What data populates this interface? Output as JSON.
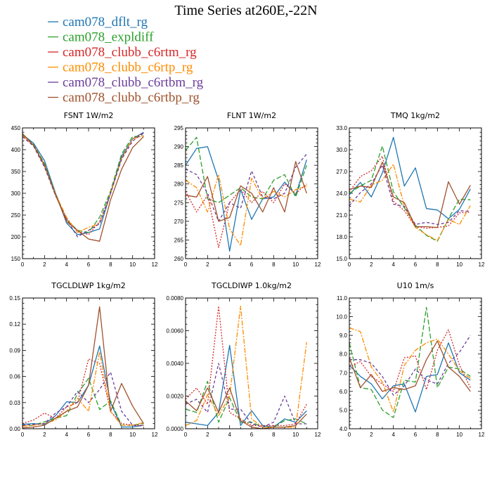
{
  "figure": {
    "title": "Time Series at260E,-22N"
  },
  "colors": {
    "cam078_dflt_rg": "#1f77b4",
    "cam078_expldiff": "#2ca02c",
    "cam078_clubb_c6rtm_rg": "#d62728",
    "cam078_clubb_c6rtp_rg": "#ff8c00",
    "cam078_clubb_c6rtbm_rg": "#6a3d9a",
    "cam078_clubb_c6rtbp_rg": "#a0522d"
  },
  "legend": [
    {
      "label": "cam078_dflt_rg",
      "color": "#1f77b4",
      "dash": "solid"
    },
    {
      "label": "cam078_expldiff",
      "color": "#2ca02c",
      "dash": "longdash"
    },
    {
      "label": "cam078_clubb_c6rtm_rg",
      "color": "#d62728",
      "dash": "dot"
    },
    {
      "label": "cam078_clubb_c6rtp_rg",
      "color": "#ff8c00",
      "dash": "dashdot"
    },
    {
      "label": "cam078_clubb_c6rtbm_rg",
      "color": "#6a3d9a",
      "dash": "dash"
    },
    {
      "label": "cam078_clubb_c6rtbp_rg",
      "color": "#a0522d",
      "dash": "solid"
    }
  ],
  "chart_data": [
    {
      "type": "line",
      "title": "FSNT   1W/m2",
      "xlim": [
        0,
        12
      ],
      "xticks": [
        "0",
        "2",
        "4",
        "6",
        "8",
        "10",
        "12"
      ],
      "ylim": [
        150,
        450
      ],
      "yticks": [
        "150",
        "200",
        "250",
        "300",
        "350",
        "400",
        "450"
      ],
      "x": [
        0,
        1,
        2,
        3,
        4,
        5,
        6,
        7,
        8,
        9,
        10,
        11
      ],
      "series": [
        {
          "name": "cam078_dflt_rg",
          "values": [
            435,
            415,
            375,
            300,
            232,
            205,
            210,
            218,
            300,
            385,
            425,
            440
          ]
        },
        {
          "name": "cam078_expldiff",
          "values": [
            435,
            412,
            368,
            300,
            240,
            215,
            210,
            245,
            305,
            390,
            430,
            432
          ]
        },
        {
          "name": "cam078_clubb_c6rtm_rg",
          "values": [
            432,
            410,
            365,
            295,
            240,
            213,
            205,
            235,
            300,
            380,
            425,
            438
          ]
        },
        {
          "name": "cam078_clubb_c6rtp_rg",
          "values": [
            432,
            410,
            362,
            298,
            245,
            210,
            222,
            230,
            300,
            380,
            425,
            432
          ]
        },
        {
          "name": "cam078_clubb_c6rtbm_rg",
          "values": [
            430,
            408,
            360,
            295,
            240,
            200,
            215,
            230,
            300,
            378,
            420,
            438
          ]
        },
        {
          "name": "cam078_clubb_c6rtbp_rg",
          "values": [
            437,
            410,
            365,
            297,
            235,
            215,
            195,
            190,
            285,
            355,
            405,
            430
          ]
        }
      ]
    },
    {
      "type": "line",
      "title": "FLNT   1W/m2",
      "xlim": [
        0,
        12
      ],
      "xticks": [
        "0",
        "2",
        "4",
        "6",
        "8",
        "10",
        "12"
      ],
      "ylim": [
        260,
        295
      ],
      "yticks": [
        "260",
        "265",
        "270",
        "275",
        "280",
        "285",
        "290",
        "295"
      ],
      "x": [
        0,
        1,
        2,
        3,
        4,
        5,
        6,
        7,
        8,
        9,
        10,
        11
      ],
      "series": [
        {
          "name": "cam078_dflt_rg",
          "values": [
            285,
            289.5,
            290,
            281,
            262,
            278.5,
            270.5,
            276,
            276.5,
            280.5,
            277,
            286.5
          ]
        },
        {
          "name": "cam078_expldiff",
          "values": [
            289,
            292.5,
            276,
            275,
            277,
            279,
            276.5,
            276,
            281,
            282.5,
            276.5,
            285
          ]
        },
        {
          "name": "cam078_clubb_c6rtm_rg",
          "values": [
            278,
            272.5,
            277,
            263,
            275,
            278.5,
            275,
            278,
            275,
            280,
            277.5,
            280
          ]
        },
        {
          "name": "cam078_clubb_c6rtp_rg",
          "values": [
            281,
            279,
            272.5,
            282.5,
            268,
            263.5,
            281.5,
            276,
            278,
            276.5,
            278.5,
            279.5
          ]
        },
        {
          "name": "cam078_clubb_c6rtbm_rg",
          "values": [
            284,
            282.5,
            277.5,
            270,
            275,
            273.5,
            283.5,
            276.5,
            276,
            277.5,
            284.5,
            288
          ]
        },
        {
          "name": "cam078_clubb_c6rtbp_rg",
          "values": [
            277,
            276.5,
            282,
            270,
            271,
            279.5,
            277.5,
            272.5,
            279,
            272.5,
            286,
            277.5
          ]
        }
      ]
    },
    {
      "type": "line",
      "title": "TMQ   1kg/m2",
      "xlim": [
        0,
        12
      ],
      "xticks": [
        "0",
        "2",
        "4",
        "6",
        "8",
        "10",
        "12"
      ],
      "ylim": [
        15,
        33
      ],
      "yticks": [
        "15.0",
        "18.0",
        "21.0",
        "24.0",
        "27.0",
        "30.0",
        "33.0"
      ],
      "x": [
        0,
        1,
        2,
        3,
        4,
        5,
        6,
        7,
        8,
        9,
        10,
        11
      ],
      "series": [
        {
          "name": "cam078_dflt_rg",
          "values": [
            23.8,
            25.5,
            23.5,
            26.8,
            31.7,
            25.0,
            27.5,
            21.9,
            21.7,
            20.5,
            21.8,
            24.6
          ]
        },
        {
          "name": "cam078_expldiff",
          "values": [
            24.0,
            25.0,
            25.8,
            30.5,
            24.2,
            22.0,
            19.6,
            18.2,
            17.4,
            20.5,
            23.2,
            23.1
          ]
        },
        {
          "name": "cam078_clubb_c6rtm_rg",
          "values": [
            24.2,
            26.3,
            27.1,
            29.1,
            22.9,
            21.6,
            19.4,
            19.2,
            19.3,
            19.5,
            21.3,
            21.4
          ]
        },
        {
          "name": "cam078_clubb_c6rtp_rg",
          "values": [
            23.2,
            22.8,
            25.1,
            25.8,
            28.0,
            22.2,
            19.3,
            18.3,
            17.5,
            20.4,
            19.7,
            22.3
          ]
        },
        {
          "name": "cam078_clubb_c6rtbm_rg",
          "values": [
            22.3,
            24.1,
            25.3,
            27.9,
            22.5,
            22.2,
            19.7,
            20.0,
            19.7,
            20.0,
            21.6,
            21.5
          ]
        },
        {
          "name": "cam078_clubb_c6rtbp_rg",
          "values": [
            24.5,
            25.0,
            24.8,
            28.3,
            23.5,
            22.7,
            19.4,
            19.4,
            19.3,
            25.6,
            22.5,
            25.1
          ]
        }
      ]
    },
    {
      "type": "line",
      "title": "TGCLDLWP   1kg/m2",
      "xlim": [
        0,
        12
      ],
      "xticks": [
        "0",
        "2",
        "4",
        "6",
        "8",
        "10",
        "12"
      ],
      "ylim": [
        0,
        0.15
      ],
      "yticks": [
        "0.00",
        "0.03",
        "0.06",
        "0.09",
        "0.12",
        "0.15"
      ],
      "x": [
        0,
        1,
        2,
        3,
        4,
        5,
        6,
        7,
        8,
        9,
        10,
        11
      ],
      "series": [
        {
          "name": "cam078_dflt_rg",
          "values": [
            0.005,
            0.006,
            0.005,
            0.015,
            0.031,
            0.03,
            0.05,
            0.095,
            0.03,
            0.002,
            0.002,
            0.004
          ]
        },
        {
          "name": "cam078_expldiff",
          "values": [
            0.003,
            0.004,
            0.008,
            0.012,
            0.015,
            0.04,
            0.058,
            0.022,
            0.032,
            0.004,
            0.004,
            0.006
          ]
        },
        {
          "name": "cam078_clubb_c6rtm_rg",
          "values": [
            0.006,
            0.01,
            0.018,
            0.012,
            0.025,
            0.03,
            0.08,
            0.075,
            0.02,
            0.006,
            0.004,
            0.004
          ]
        },
        {
          "name": "cam078_clubb_c6rtp_rg",
          "values": [
            0.003,
            0.004,
            0.006,
            0.01,
            0.02,
            0.035,
            0.02,
            0.088,
            0.02,
            0.004,
            0.004,
            0.007
          ]
        },
        {
          "name": "cam078_clubb_c6rtbm_rg",
          "values": [
            0.004,
            0.005,
            0.006,
            0.018,
            0.025,
            0.043,
            0.03,
            0.045,
            0.065,
            0.02,
            0.004,
            0.003
          ]
        },
        {
          "name": "cam078_clubb_c6rtbp_rg",
          "values": [
            0.001,
            0.002,
            0.004,
            0.012,
            0.02,
            0.025,
            0.05,
            0.14,
            0.02,
            0.052,
            0.026,
            0.006
          ]
        }
      ]
    },
    {
      "type": "line",
      "title": "TGCLDIWP   1.0kg/m2",
      "xlim": [
        0,
        12
      ],
      "xticks": [
        "0",
        "2",
        "4",
        "6",
        "8",
        "10",
        "12"
      ],
      "ylim": [
        0,
        0.008
      ],
      "yticks": [
        "0.0000",
        "0.0020",
        "0.0040",
        "0.0060",
        "0.0080"
      ],
      "x": [
        0,
        1,
        2,
        3,
        4,
        5,
        6,
        7,
        8,
        9,
        10,
        11
      ],
      "series": [
        {
          "name": "cam078_dflt_rg",
          "values": [
            0.0004,
            0.0003,
            0.0002,
            0.001,
            0.0051,
            0.0002,
            0.0011,
            0.0002,
            0.0001,
            0.0006,
            0.0004,
            0.0011
          ]
        },
        {
          "name": "cam078_expldiff",
          "values": [
            0.0012,
            0.001,
            0.0029,
            0.0004,
            0.0019,
            0.0004,
            0.0004,
            0.0001,
            0.0001,
            0.0005,
            0.0006,
            0.0003
          ]
        },
        {
          "name": "cam078_clubb_c6rtm_rg",
          "values": [
            0.0018,
            0.0025,
            0.0015,
            0.0075,
            0.001,
            0.0006,
            0.0002,
            0.0002,
            0.0002,
            0.0002,
            0.0003,
            0.0015
          ]
        },
        {
          "name": "cam078_clubb_c6rtp_rg",
          "values": [
            0.0002,
            0.0005,
            0.0021,
            0.0008,
            0.002,
            0.0075,
            0.0006,
            0.0001,
            0.0001,
            0.0001,
            0.0001,
            0.0053
          ]
        },
        {
          "name": "cam078_clubb_c6rtbm_rg",
          "values": [
            0.0015,
            0.0018,
            0.001,
            0.004,
            0.0012,
            0.0012,
            0.0003,
            0.0001,
            0.0004,
            0.002,
            0.0003,
            0.0003
          ]
        },
        {
          "name": "cam078_clubb_c6rtbp_rg",
          "values": [
            0.0017,
            0.0011,
            0.0025,
            0.001,
            0.0025,
            0.0005,
            0.0001,
            0.0,
            0.0001,
            0.0001,
            0.0002,
            0.0009
          ]
        }
      ]
    },
    {
      "type": "line",
      "title": "U10   1m/s",
      "xlim": [
        0,
        12
      ],
      "xticks": [
        "0",
        "2",
        "4",
        "6",
        "8",
        "10",
        "12"
      ],
      "ylim": [
        4,
        11
      ],
      "yticks": [
        "4.0",
        "5.0",
        "6.0",
        "7.0",
        "8.0",
        "9.0",
        "10.0",
        "11.0"
      ],
      "x": [
        0,
        1,
        2,
        3,
        4,
        5,
        6,
        7,
        8,
        9,
        10,
        11
      ],
      "series": [
        {
          "name": "cam078_dflt_rg",
          "values": [
            7.4,
            6.8,
            6.4,
            5.6,
            6.3,
            6.4,
            4.9,
            6.8,
            6.9,
            8.6,
            7.0,
            6.6
          ]
        },
        {
          "name": "cam078_expldiff",
          "values": [
            8.6,
            6.2,
            6.1,
            5.0,
            4.6,
            6.6,
            6.5,
            10.5,
            6.2,
            7.3,
            7.2,
            6.8
          ]
        },
        {
          "name": "cam078_clubb_c6rtm_rg",
          "values": [
            7.3,
            7.6,
            6.8,
            6.4,
            6.0,
            7.8,
            7.9,
            6.1,
            8.2,
            9.3,
            7.4,
            6.2
          ]
        },
        {
          "name": "cam078_clubb_c6rtp_rg",
          "values": [
            9.4,
            9.2,
            7.3,
            6.5,
            4.9,
            7.4,
            8.2,
            8.6,
            8.8,
            8.0,
            7.1,
            6.7
          ]
        },
        {
          "name": "cam078_clubb_c6rtbm_rg",
          "values": [
            7.7,
            7.7,
            7.5,
            6.8,
            5.8,
            6.3,
            7.2,
            6.6,
            6.4,
            7.5,
            8.1,
            9.0
          ]
        },
        {
          "name": "cam078_clubb_c6rtbp_rg",
          "values": [
            7.8,
            6.2,
            6.9,
            6.0,
            6.2,
            6.1,
            6.3,
            7.7,
            8.7,
            7.3,
            6.8,
            6.0
          ]
        }
      ]
    }
  ]
}
